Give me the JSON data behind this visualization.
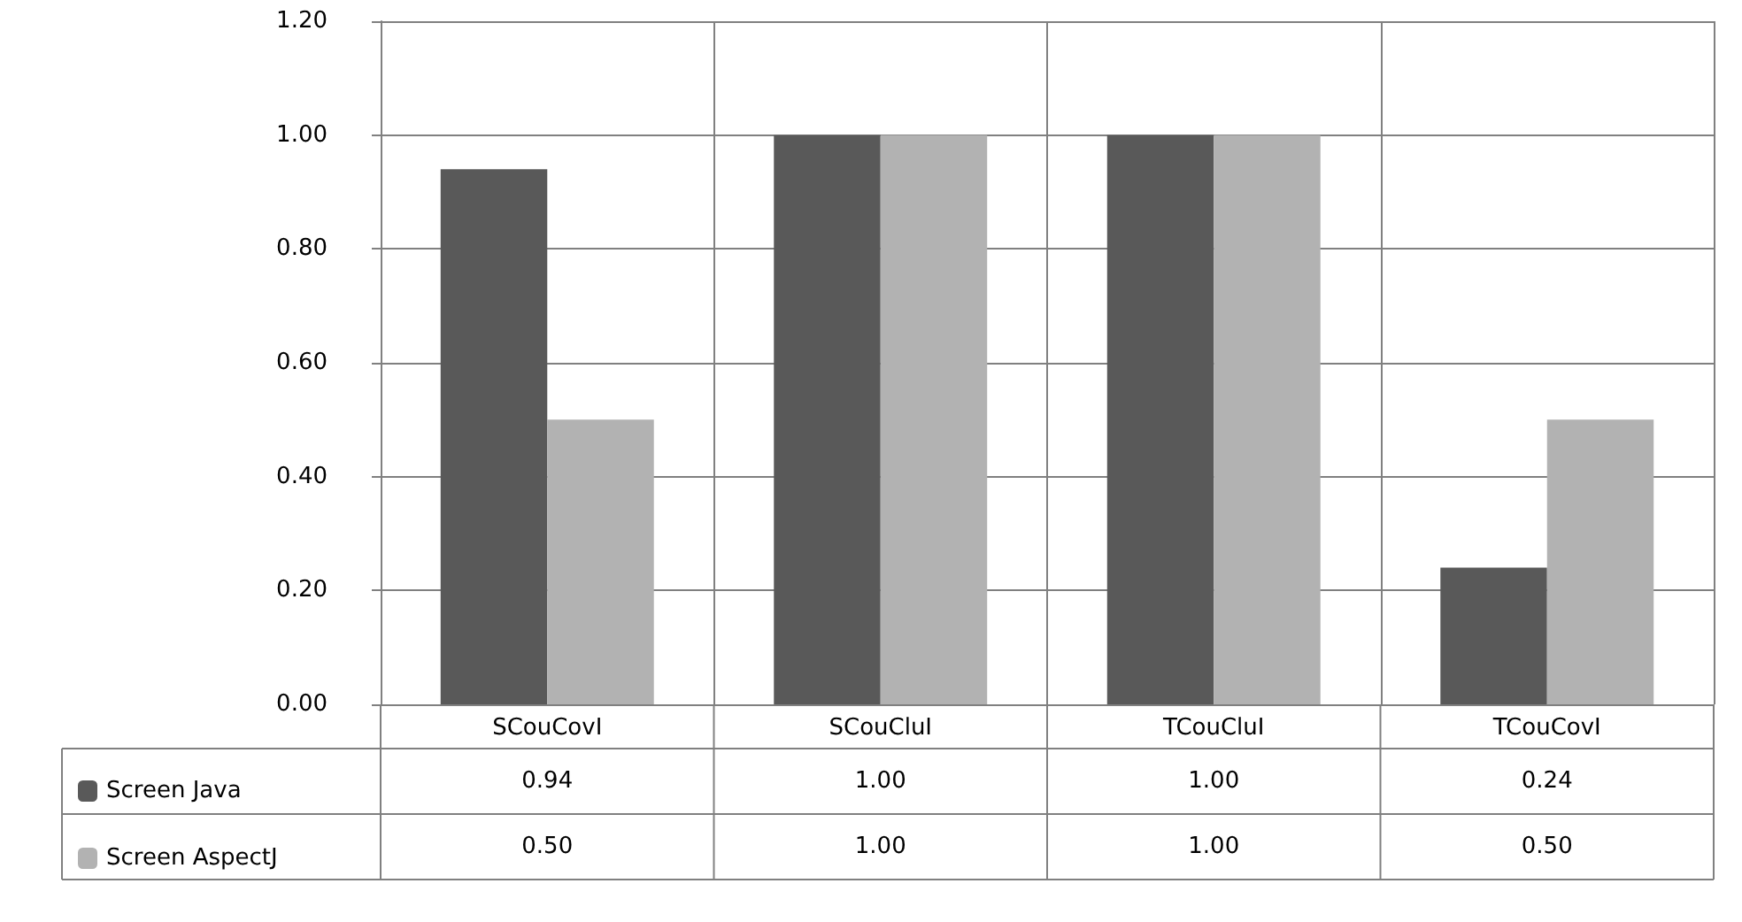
{
  "chart_data": {
    "type": "bar",
    "categories": [
      "SCouCovI",
      "SCouCluI",
      "TCouCluI",
      "TCouCovI"
    ],
    "series": [
      {
        "name": "Screen Java",
        "color": "#595959",
        "values": [
          0.94,
          1.0,
          1.0,
          0.24
        ],
        "value_labels": [
          "0.94",
          "1.00",
          "1.00",
          "0.24"
        ]
      },
      {
        "name": "Screen AspectJ",
        "color": "#b2b2b2",
        "values": [
          0.5,
          1.0,
          1.0,
          0.5
        ],
        "value_labels": [
          "0.50",
          "1.00",
          "1.00",
          "0.50"
        ]
      }
    ],
    "ylim": [
      0,
      1.2
    ],
    "yticks": [
      {
        "value": 0,
        "label": "0.00"
      },
      {
        "value": 0.2,
        "label": "0.20"
      },
      {
        "value": 0.4,
        "label": "0.40"
      },
      {
        "value": 0.6,
        "label": "0.60"
      },
      {
        "value": 0.8,
        "label": "0.80"
      },
      {
        "value": 1,
        "label": "1.00"
      },
      {
        "value": 1.2,
        "label": "1.20"
      }
    ],
    "grid": true,
    "legend": "bottom left"
  }
}
